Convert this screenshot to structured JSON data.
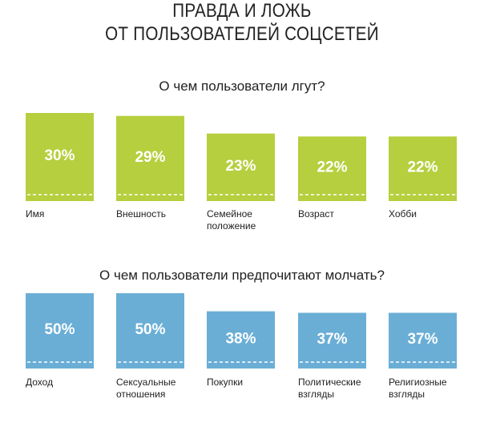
{
  "title": {
    "line1": "ПРАВДА И ЛОЖЬ",
    "line2": "ОТ ПОЛЬЗОВАТЕЛЕЙ СОЦСЕТЕЙ"
  },
  "colors": {
    "lie": "#b6cf3e",
    "silent": "#6aaed6",
    "dash": "#ffffff",
    "text": "#222222"
  },
  "chart_data": [
    {
      "type": "bar",
      "title": "О чем пользователи лгут?",
      "categories": [
        "Имя",
        "Внешность",
        "Семейное\nположение",
        "Возраст",
        "Хобби"
      ],
      "values": [
        30,
        29,
        23,
        22,
        22
      ],
      "value_labels": [
        "30%",
        "29%",
        "23%",
        "22%",
        "22%"
      ],
      "color": "#b6cf3e"
    },
    {
      "type": "bar",
      "title": "О чем пользователи предпочитают молчать?",
      "categories": [
        "Доход",
        "Сексуальные\nотношения",
        "Покупки",
        "Политические\nвзгляды",
        "Религиозные\nвзгляды"
      ],
      "values": [
        50,
        50,
        38,
        37,
        37
      ],
      "value_labels": [
        "50%",
        "50%",
        "38%",
        "37%",
        "37%"
      ],
      "color": "#6aaed6"
    }
  ]
}
